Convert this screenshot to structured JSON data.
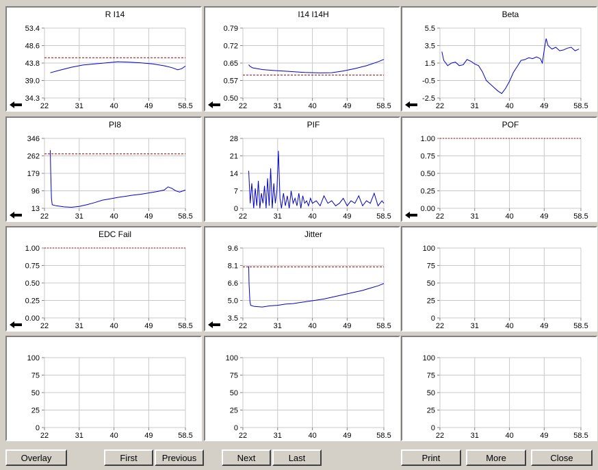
{
  "x_ticks": [
    "22",
    "31",
    "40",
    "49",
    "58.5"
  ],
  "charts": [
    {
      "title": "R I14",
      "y_ticks": [
        "53.4",
        "48.6",
        "43.8",
        "39.0",
        "34.3"
      ],
      "ylim": [
        34.3,
        53.4
      ],
      "threshold": 45.3,
      "threshold_style": "dashed",
      "arrow": true,
      "series": {
        "x": [
          23.5,
          26,
          29,
          32,
          35,
          38,
          41,
          44,
          47,
          50,
          53,
          55,
          56.5,
          57.5,
          58.5
        ],
        "y": [
          41.2,
          41.9,
          42.7,
          43.3,
          43.6,
          43.9,
          44.2,
          44.1,
          43.9,
          43.6,
          43.1,
          42.6,
          42.0,
          42.3,
          43.0
        ]
      }
    },
    {
      "title": "I14 I14H",
      "y_ticks": [
        "0.79",
        "0.72",
        "0.65",
        "0.57",
        "0.50"
      ],
      "ylim": [
        0.5,
        0.79
      ],
      "threshold": 0.595,
      "threshold_style": "dashed",
      "arrow": true,
      "series": {
        "x": [
          23.5,
          23.8,
          24.5,
          27,
          30,
          34,
          38,
          42,
          45,
          48,
          51,
          54,
          57,
          58.5
        ],
        "y": [
          0.638,
          0.632,
          0.625,
          0.618,
          0.614,
          0.61,
          0.606,
          0.604,
          0.605,
          0.612,
          0.622,
          0.634,
          0.65,
          0.66
        ]
      }
    },
    {
      "title": "Beta",
      "y_ticks": [
        "5.5",
        "3.5",
        "1.5",
        "-0.5",
        "-2.5"
      ],
      "ylim": [
        -2.5,
        5.5
      ],
      "threshold": null,
      "arrow": true,
      "series": {
        "x": [
          22.5,
          23,
          24,
          25,
          26,
          27,
          28,
          29,
          30,
          31,
          32,
          33,
          34,
          35,
          36,
          37,
          38,
          39,
          40,
          41,
          42,
          43,
          44,
          45,
          46,
          47,
          48,
          48.5,
          49,
          49.5,
          50,
          51,
          52,
          53,
          54,
          55,
          56,
          57,
          58
        ],
        "y": [
          2.8,
          1.8,
          1.2,
          1.5,
          1.6,
          1.2,
          1.3,
          1.9,
          1.7,
          1.4,
          1.2,
          0.5,
          -0.5,
          -0.9,
          -1.3,
          -1.7,
          -2.0,
          -1.4,
          -0.6,
          0.4,
          1.1,
          1.8,
          1.9,
          2.1,
          2.0,
          2.2,
          2.0,
          1.5,
          3.0,
          4.3,
          3.5,
          3.1,
          3.3,
          2.9,
          3.0,
          3.2,
          3.3,
          2.9,
          3.1
        ]
      }
    },
    {
      "title": "PI8",
      "y_ticks": [
        "346",
        "262",
        "179",
        "96",
        "13"
      ],
      "ylim": [
        13,
        346
      ],
      "threshold": 272,
      "threshold_style": "dashed",
      "arrow": true,
      "series": {
        "x": [
          23.5,
          23.6,
          23.8,
          24,
          25,
          27,
          29,
          31,
          33,
          35,
          37,
          39,
          41,
          43,
          45,
          47,
          49,
          51,
          53,
          54,
          55,
          56,
          57,
          58.5
        ],
        "y": [
          290,
          200,
          60,
          30,
          25,
          20,
          18,
          22,
          30,
          40,
          52,
          58,
          65,
          70,
          76,
          80,
          86,
          92,
          100,
          115,
          108,
          96,
          90,
          100
        ]
      }
    },
    {
      "title": "PIF",
      "y_ticks": [
        "28",
        "21",
        "14",
        "7",
        "0"
      ],
      "ylim": [
        0,
        28
      ],
      "threshold": null,
      "arrow": false,
      "series": {
        "x": [
          23.5,
          23.9,
          24.3,
          24.8,
          25.2,
          25.6,
          26,
          26.4,
          26.8,
          27.2,
          27.6,
          28,
          28.4,
          28.8,
          29.2,
          29.6,
          30,
          30.4,
          30.8,
          31.2,
          31.6,
          32,
          32.5,
          33,
          33.5,
          34,
          34.5,
          35,
          35.5,
          36,
          36.5,
          37,
          37.5,
          38,
          38.5,
          39,
          39.5,
          40,
          41,
          42,
          43,
          44,
          45,
          46,
          47,
          48,
          49,
          50,
          51,
          52,
          53,
          54,
          55,
          56,
          57,
          58,
          58.5
        ],
        "y": [
          15,
          2,
          10,
          0,
          8,
          1,
          11,
          0,
          6,
          2,
          9,
          0,
          12,
          1,
          16,
          0,
          10,
          2,
          7,
          23,
          4,
          0,
          6,
          1,
          5,
          0,
          7,
          2,
          4,
          1,
          6,
          0,
          5,
          2,
          3,
          1,
          4,
          2,
          3,
          1,
          5,
          2,
          3,
          1,
          2,
          4,
          1,
          3,
          2,
          5,
          1,
          3,
          2,
          6,
          1,
          3,
          2
        ]
      }
    },
    {
      "title": "POF",
      "y_ticks": [
        "1.00",
        "0.75",
        "0.50",
        "0.25",
        "0.00"
      ],
      "ylim": [
        0,
        1
      ],
      "threshold": 1.0,
      "threshold_style": "dotted",
      "arrow": true,
      "series": null
    },
    {
      "title": "EDC Fail",
      "y_ticks": [
        "1.00",
        "0.75",
        "0.50",
        "0.25",
        "0.00"
      ],
      "ylim": [
        0,
        1
      ],
      "threshold": 1.0,
      "threshold_style": "dotted",
      "arrow": true,
      "series": null
    },
    {
      "title": "Jitter",
      "y_ticks": [
        "9.6",
        "8.1",
        "6.6",
        "5.0",
        "3.5"
      ],
      "ylim": [
        3.5,
        9.6
      ],
      "threshold": 7.95,
      "threshold_style": "dashed",
      "arrow": true,
      "series": {
        "x": [
          23.5,
          23.6,
          23.8,
          24,
          25,
          27,
          29,
          31,
          33,
          35,
          37,
          39,
          41,
          43,
          45,
          47,
          49,
          51,
          53,
          55,
          57,
          58.5
        ],
        "y": [
          8.0,
          6.5,
          5.0,
          4.6,
          4.5,
          4.45,
          4.55,
          4.6,
          4.7,
          4.75,
          4.85,
          4.95,
          5.05,
          5.15,
          5.3,
          5.45,
          5.6,
          5.75,
          5.9,
          6.1,
          6.3,
          6.5
        ]
      }
    },
    {
      "title": "",
      "y_ticks": [
        "100",
        "75",
        "50",
        "25",
        "0"
      ],
      "ylim": [
        0,
        100
      ],
      "threshold": null,
      "arrow": false,
      "series": null
    },
    {
      "title": "",
      "y_ticks": [
        "100",
        "75",
        "50",
        "25",
        "0"
      ],
      "ylim": [
        0,
        100
      ],
      "threshold": null,
      "arrow": false,
      "series": null
    },
    {
      "title": "",
      "y_ticks": [
        "100",
        "75",
        "50",
        "25",
        "0"
      ],
      "ylim": [
        0,
        100
      ],
      "threshold": null,
      "arrow": false,
      "series": null
    },
    {
      "title": "",
      "y_ticks": [
        "100",
        "75",
        "50",
        "25",
        "0"
      ],
      "ylim": [
        0,
        100
      ],
      "threshold": null,
      "arrow": false,
      "series": null
    }
  ],
  "colors": {
    "series": "#0000cc",
    "threshold": "#a00000",
    "grid": "#c8c8c8"
  },
  "buttons": {
    "overlay": "Overlay",
    "first": "First",
    "previous": "Previous",
    "next": "Next",
    "last": "Last",
    "print": "Print",
    "more": "More",
    "close": "Close"
  }
}
